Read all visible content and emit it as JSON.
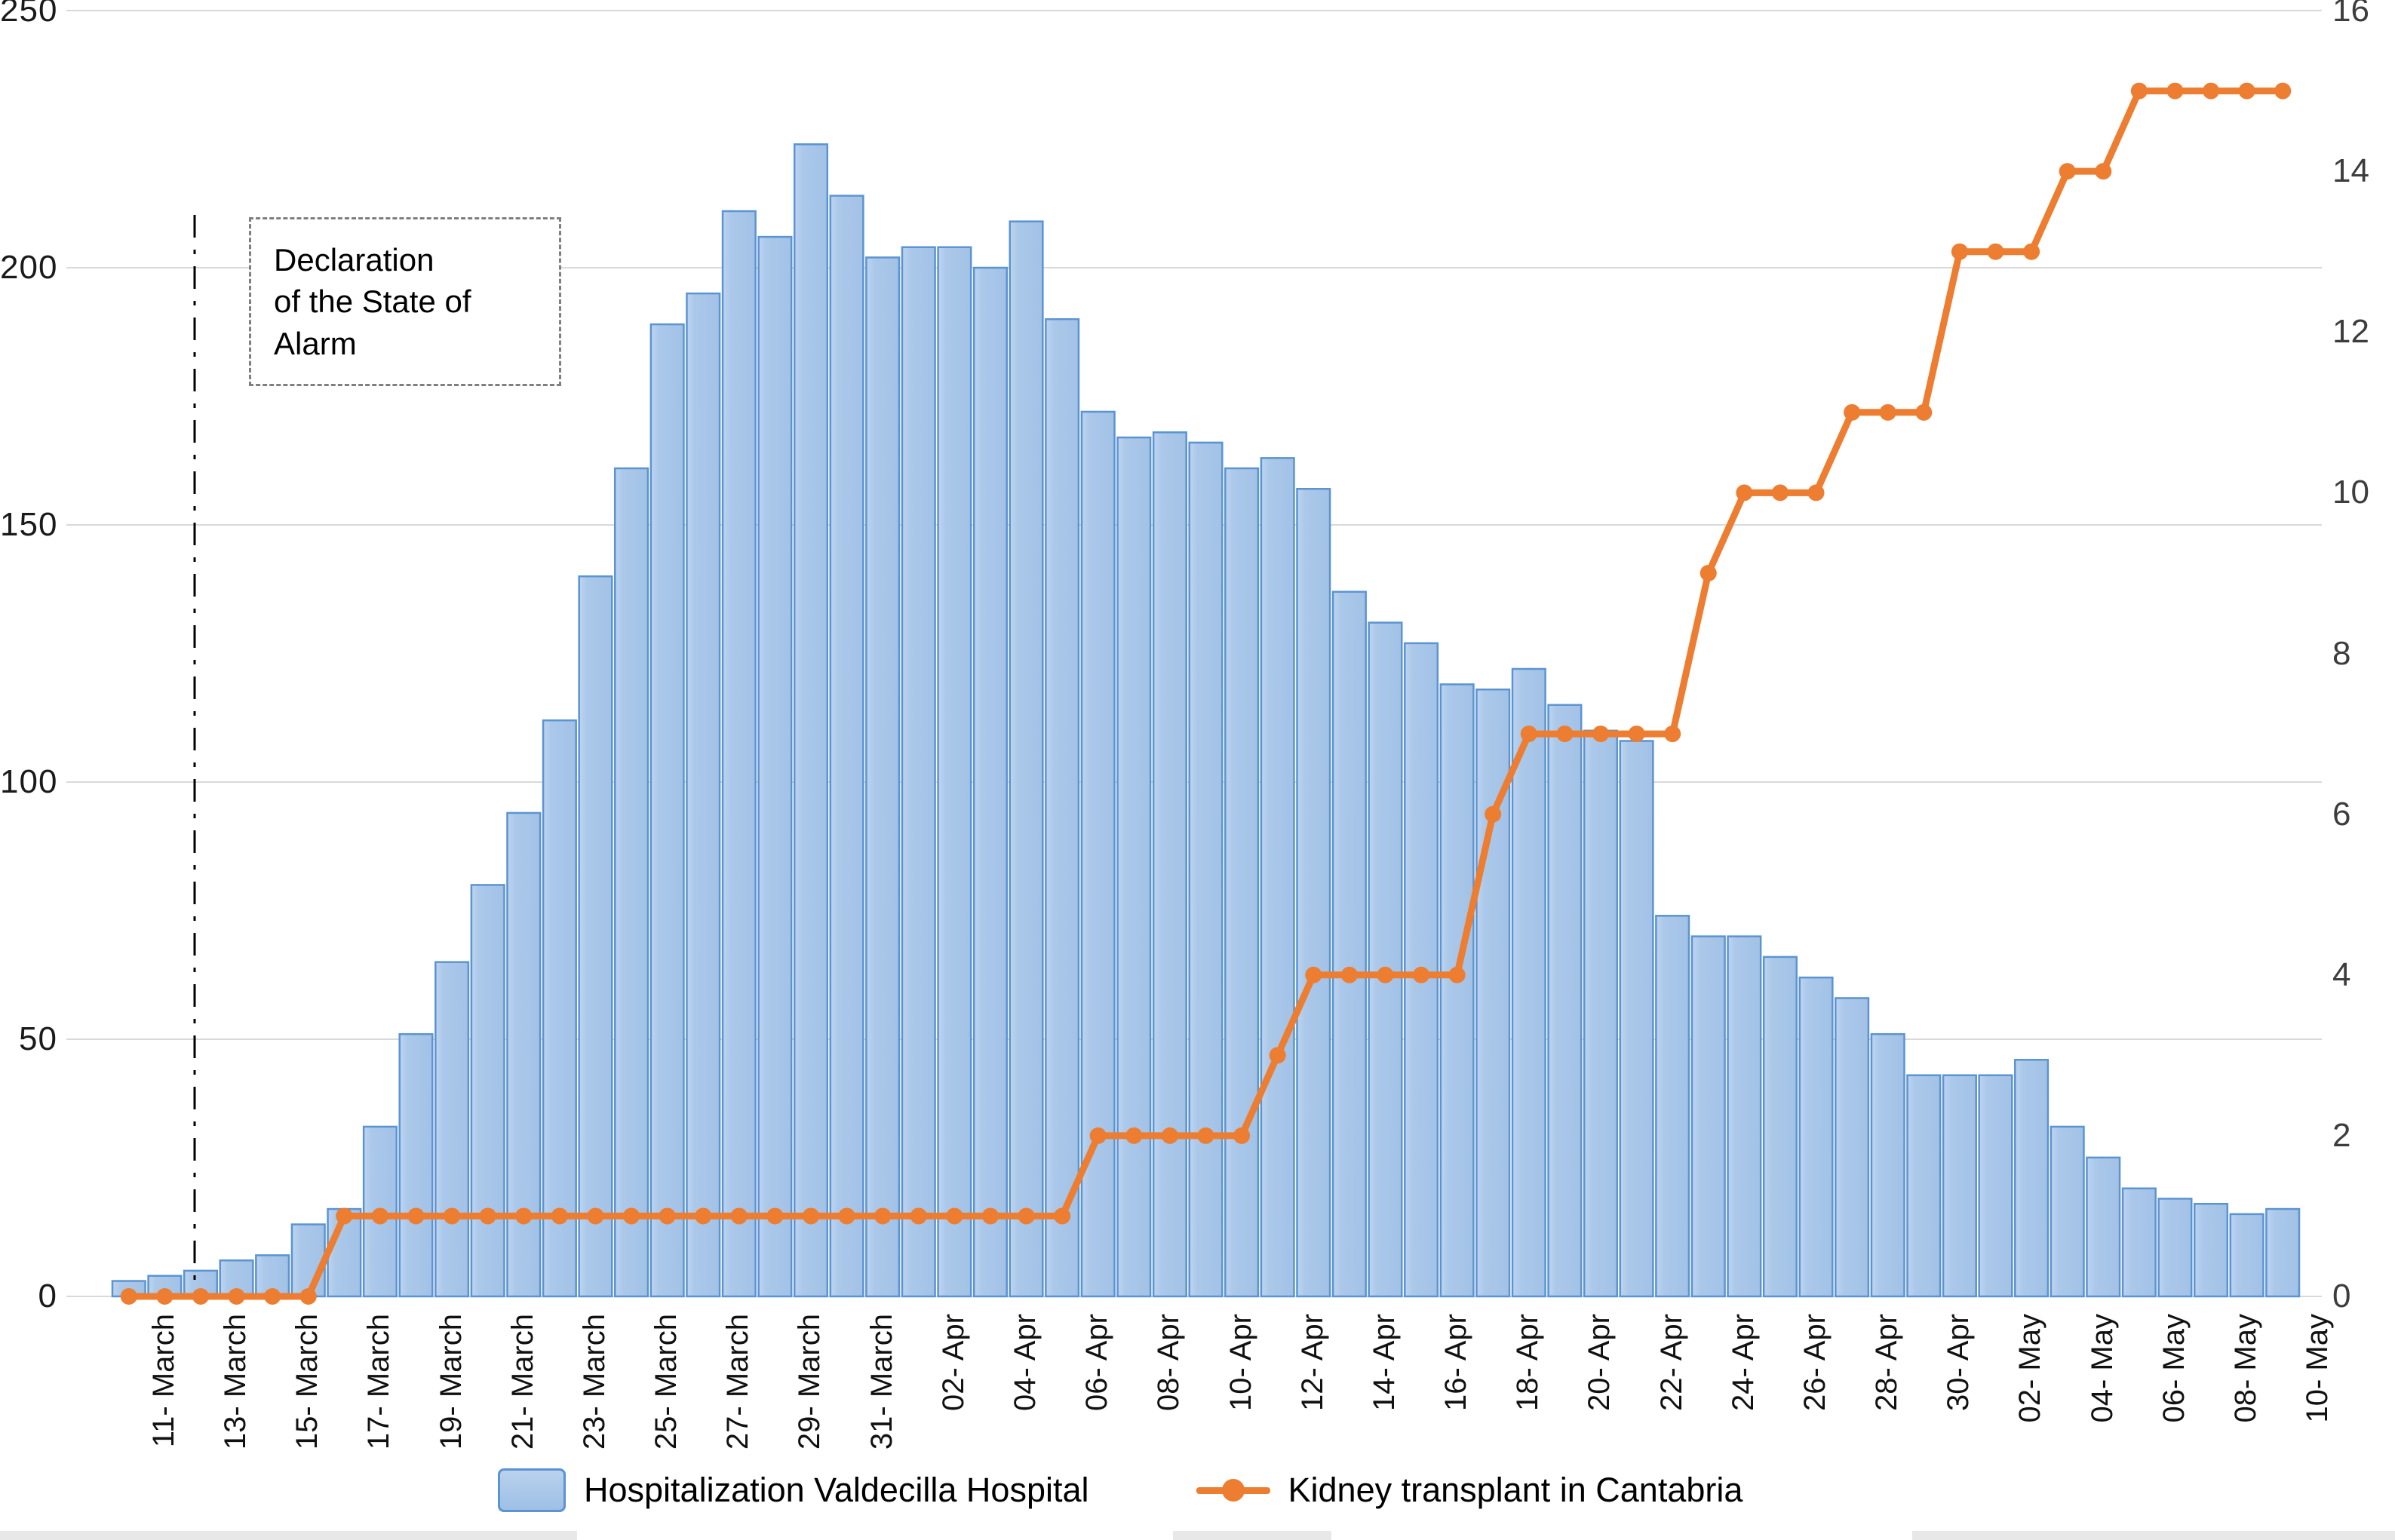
{
  "chart_data": {
    "type": "bar",
    "title": "",
    "x_tick_labels": [
      "11- March",
      "13- March",
      "15- March",
      "17- March",
      "19- March",
      "21- March",
      "23- March",
      "25- March",
      "27- March",
      "29- March",
      "31- March",
      "02- Apr",
      "04- Apr",
      "06- Apr",
      "08- Apr",
      "10- Apr",
      "12- Apr",
      "14- Apr",
      "16- Apr",
      "18- Apr",
      "20- Apr",
      "22- Apr",
      "24- Apr",
      "26- Apr",
      "28- Apr",
      "30- Apr",
      "02- May",
      "04- May",
      "06- May",
      "08- May",
      "10- May"
    ],
    "categories": [
      "11-Mar",
      "12-Mar",
      "13-Mar",
      "14-Mar",
      "15-Mar",
      "16-Mar",
      "17-Mar",
      "18-Mar",
      "19-Mar",
      "20-Mar",
      "21-Mar",
      "22-Mar",
      "23-Mar",
      "24-Mar",
      "25-Mar",
      "26-Mar",
      "27-Mar",
      "28-Mar",
      "29-Mar",
      "30-Mar",
      "31-Mar",
      "01-Apr",
      "02-Apr",
      "03-Apr",
      "04-Apr",
      "05-Apr",
      "06-Apr",
      "07-Apr",
      "08-Apr",
      "09-Apr",
      "10-Apr",
      "11-Apr",
      "12-Apr",
      "13-Apr",
      "14-Apr",
      "15-Apr",
      "16-Apr",
      "17-Apr",
      "18-Apr",
      "19-Apr",
      "20-Apr",
      "21-Apr",
      "22-Apr",
      "23-Apr",
      "24-Apr",
      "25-Apr",
      "26-Apr",
      "27-Apr",
      "28-Apr",
      "29-Apr",
      "30-Apr",
      "01-May",
      "02-May",
      "03-May",
      "04-May",
      "05-May",
      "06-May",
      "07-May",
      "08-May",
      "09-May",
      "10-May"
    ],
    "series": [
      {
        "name": "Hospitalization Valdecilla Hospital",
        "type": "bar",
        "axis": "left",
        "fill_color": "#a9c7e9",
        "border_color": "#5b94d2",
        "values": [
          3,
          4,
          5,
          7,
          8,
          14,
          17,
          33,
          51,
          65,
          80,
          94,
          112,
          140,
          161,
          189,
          195,
          211,
          206,
          224,
          214,
          202,
          204,
          204,
          200,
          209,
          190,
          172,
          167,
          168,
          166,
          161,
          163,
          157,
          137,
          131,
          127,
          119,
          118,
          122,
          115,
          110,
          108,
          74,
          70,
          70,
          66,
          62,
          58,
          51,
          43,
          43,
          43,
          46,
          33,
          27,
          21,
          19,
          18,
          16,
          17
        ]
      },
      {
        "name": "Kidney transplant in Cantabria",
        "type": "line",
        "axis": "right",
        "color": "#ed7d31",
        "values": [
          0,
          0,
          0,
          0,
          0,
          0,
          1,
          1,
          1,
          1,
          1,
          1,
          1,
          1,
          1,
          1,
          1,
          1,
          1,
          1,
          1,
          1,
          1,
          1,
          1,
          1,
          1,
          2,
          2,
          2,
          2,
          2,
          3,
          4,
          4,
          4,
          4,
          4,
          6,
          7,
          7,
          7,
          7,
          7,
          9,
          10,
          10,
          10,
          11,
          11,
          11,
          13,
          13,
          13,
          14,
          14,
          15,
          15,
          15,
          15,
          15
        ]
      }
    ],
    "left_axis": {
      "min": 0,
      "max": 250,
      "ticks": [
        250,
        200,
        150,
        100,
        50,
        0
      ]
    },
    "right_axis": {
      "min": 0,
      "max": 16,
      "ticks": [
        16,
        14,
        12,
        10,
        8,
        6,
        4,
        2,
        0
      ]
    },
    "grid": "horizontal",
    "gridline_color": "#d9d9d9",
    "legend_position": "bottom",
    "annotation": {
      "text": "Declaration\nof the State of\nAlarm",
      "line_style": "dash-dot-vertical",
      "line_x_category": "13-Mar"
    }
  },
  "legend": {
    "hospitalization_label": "Hospitalization Valdecilla Hospital",
    "kidney_label": "Kidney transplant in Cantabria"
  },
  "colors": {
    "bar_fill": "#a9c7e9",
    "bar_border": "#5b94d2",
    "line": "#ed7d31",
    "grid": "#d9d9d9",
    "axis_text": "#1a1a1a"
  }
}
